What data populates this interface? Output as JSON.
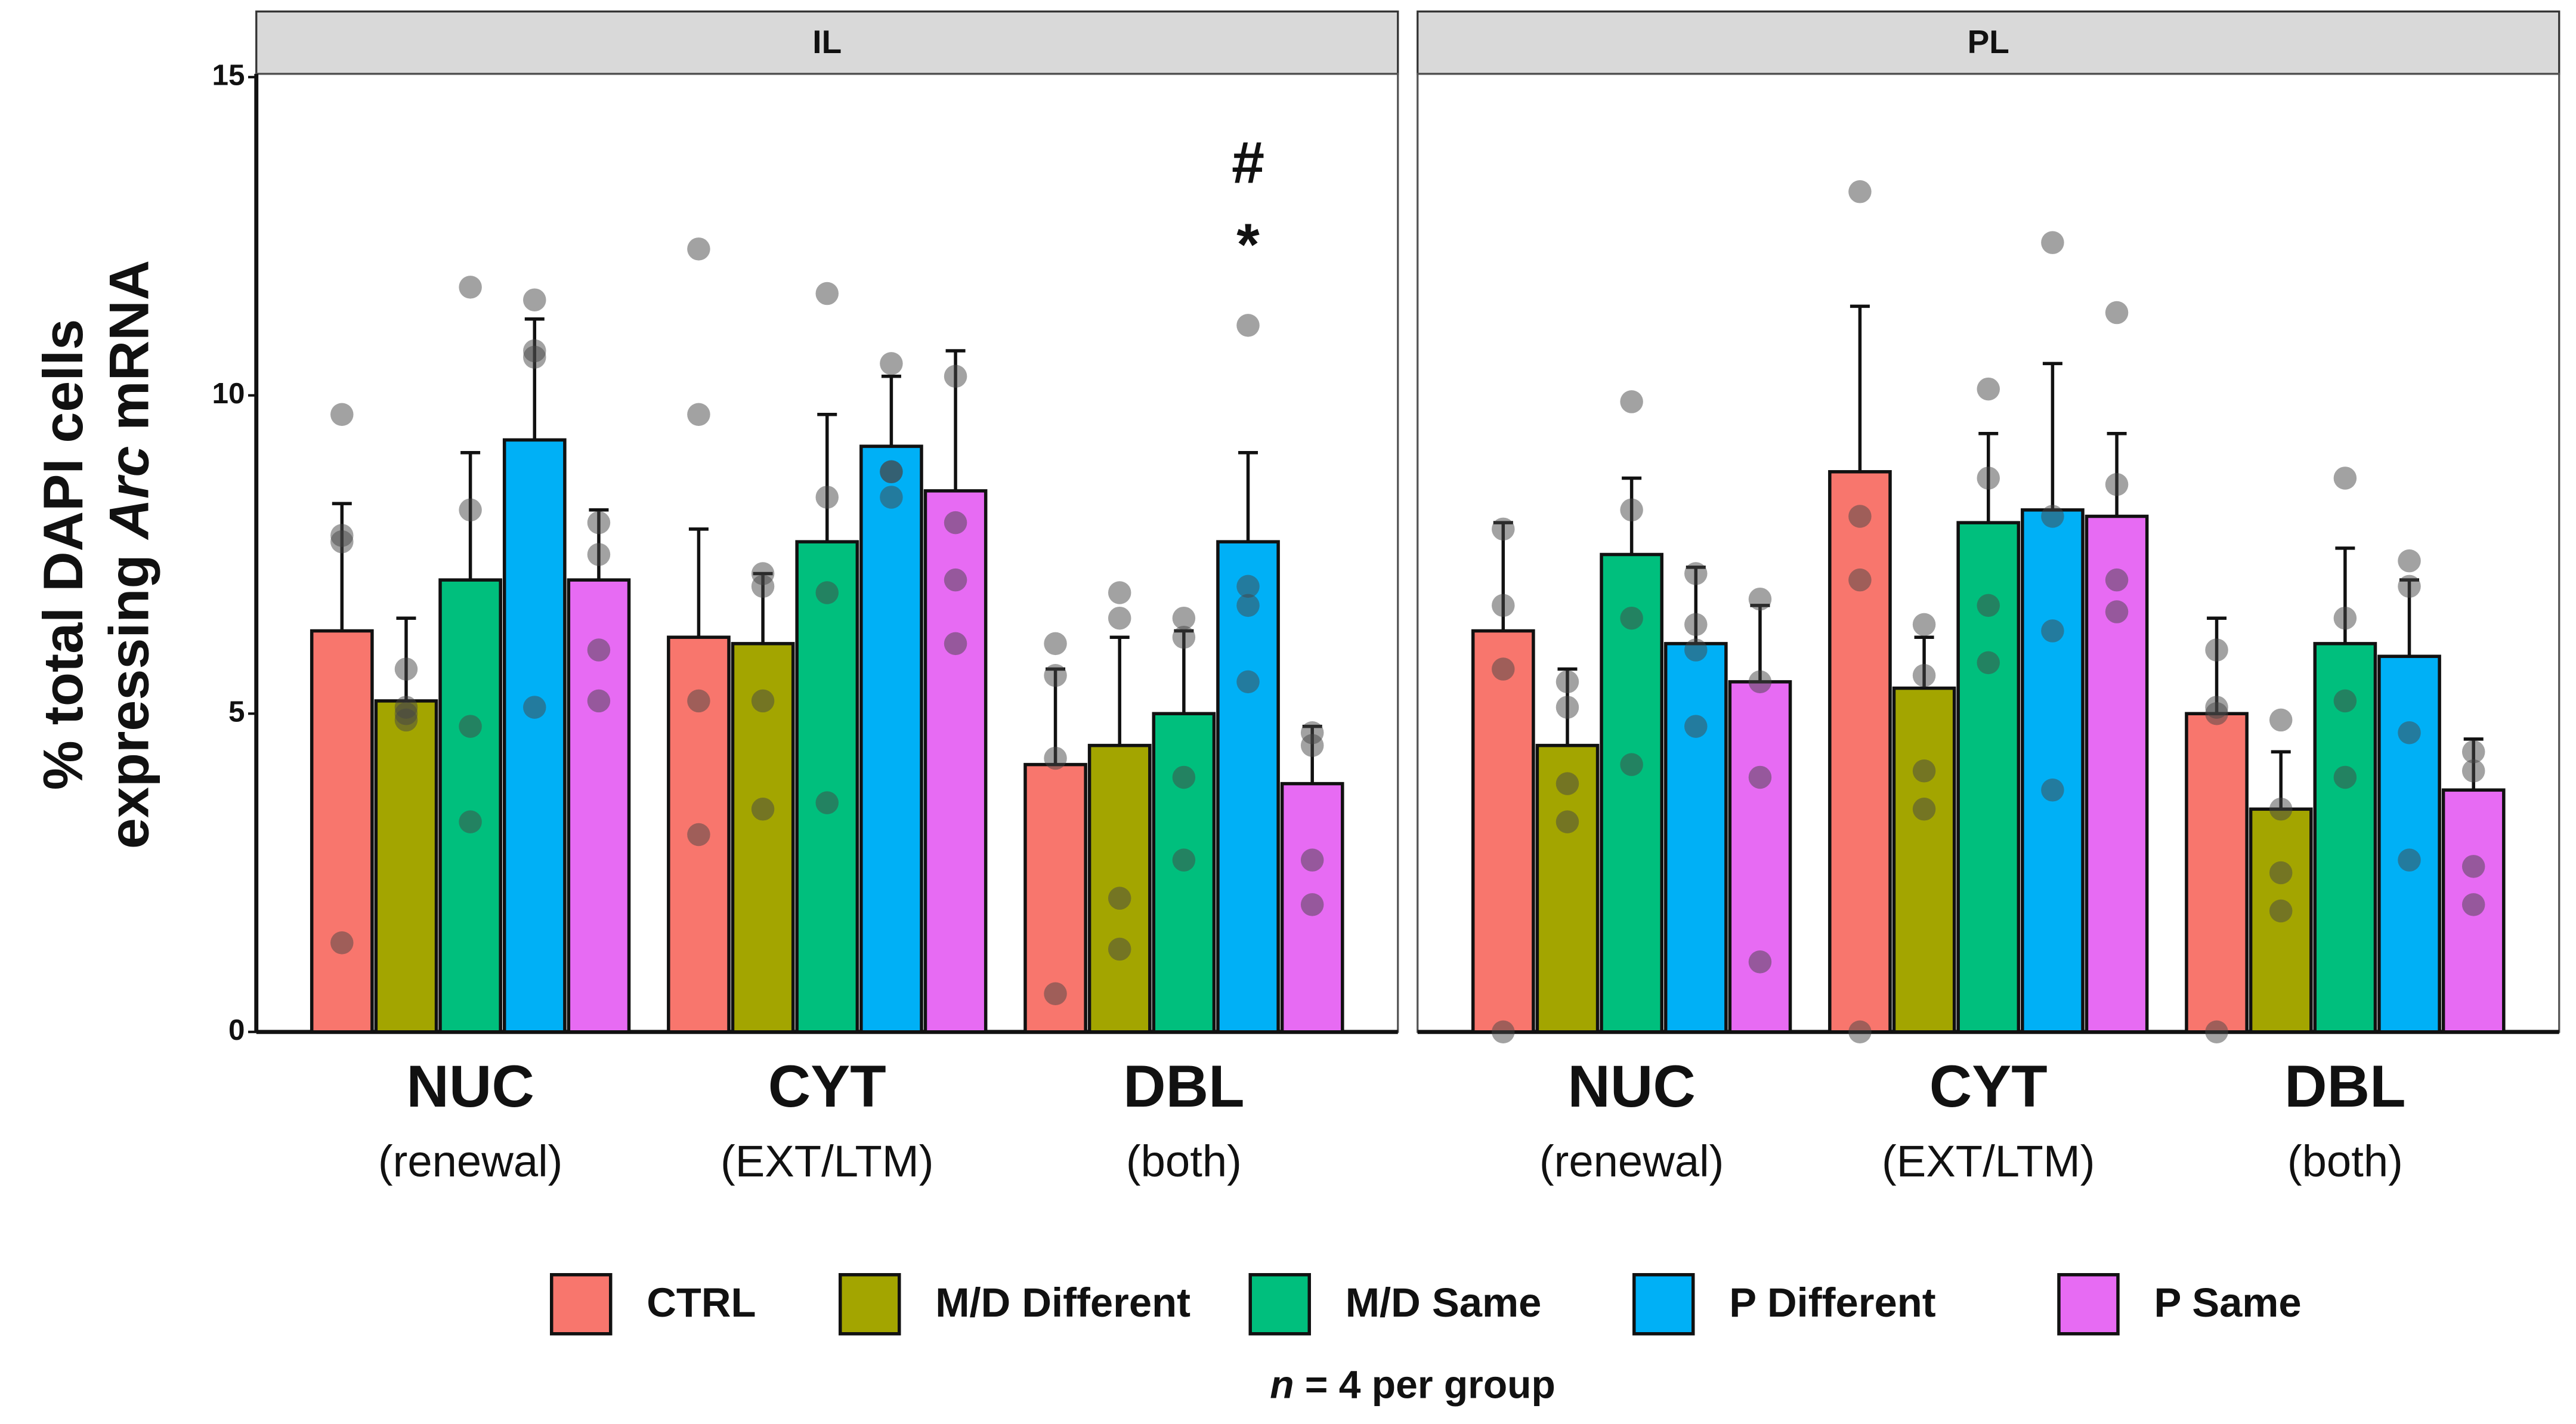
{
  "chart_data": [
    {
      "type": "bar",
      "title": "IL",
      "ylabel": {
        "line1": "% total DAPI cells",
        "line2": [
          "expressing ",
          "Arc",
          " mRNA"
        ]
      },
      "categories": [
        "NUC",
        "CYT",
        "DBL"
      ],
      "category_subtitles": [
        "(renewal)",
        "(EXT/LTM)",
        "(both)"
      ],
      "ylim": [
        0,
        15
      ],
      "yticks": [
        0,
        5,
        10,
        15
      ],
      "annotations": [
        "#",
        "*"
      ],
      "note": {
        "var": "n",
        "text": " = 4 per group"
      },
      "series": [
        {
          "name": "CTRL",
          "color": "#F8766D",
          "values": [
            6.3,
            6.2,
            4.2
          ],
          "errors": [
            2.0,
            1.7,
            1.5
          ],
          "points": [
            [
              9.7,
              7.8,
              7.7,
              1.4
            ],
            [
              12.3,
              9.7,
              5.2,
              3.1
            ],
            [
              6.1,
              5.6,
              4.3,
              0.6
            ]
          ]
        },
        {
          "name": "M/D Different",
          "color": "#A3A500",
          "values": [
            5.2,
            6.1,
            4.5
          ],
          "errors": [
            1.3,
            1.1,
            1.7
          ],
          "points": [
            [
              5.7,
              5.1,
              4.9,
              5.0
            ],
            [
              7.2,
              7.0,
              5.2,
              3.5
            ],
            [
              6.9,
              6.5,
              2.1,
              1.3
            ]
          ]
        },
        {
          "name": "M/D Same",
          "color": "#00BF7D",
          "values": [
            7.1,
            7.7,
            5.0
          ],
          "errors": [
            2.0,
            2.0,
            1.3
          ],
          "points": [
            [
              11.7,
              8.2,
              4.8,
              3.3
            ],
            [
              11.6,
              8.4,
              6.9,
              3.6
            ],
            [
              6.5,
              6.2,
              4.0,
              2.7
            ]
          ]
        },
        {
          "name": "P Different",
          "color": "#00B0F6",
          "values": [
            9.3,
            9.2,
            7.7
          ],
          "errors": [
            1.9,
            1.1,
            1.4
          ],
          "points": [
            [
              11.5,
              10.7,
              10.6,
              5.1
            ],
            [
              10.5,
              8.8,
              8.8,
              8.4
            ],
            [
              11.1,
              7.0,
              6.7,
              5.5
            ]
          ]
        },
        {
          "name": "P Same",
          "color": "#E76BF3",
          "values": [
            7.1,
            8.5,
            3.9
          ],
          "errors": [
            1.1,
            2.2,
            0.9
          ],
          "points": [
            [
              8.0,
              7.5,
              6.0,
              5.2
            ],
            [
              10.3,
              8.0,
              7.1,
              6.1
            ],
            [
              4.7,
              4.5,
              2.7,
              2.0
            ]
          ]
        }
      ]
    },
    {
      "type": "bar",
      "title": "PL",
      "categories": [
        "NUC",
        "CYT",
        "DBL"
      ],
      "category_subtitles": [
        "(renewal)",
        "(EXT/LTM)",
        "(both)"
      ],
      "ylim": [
        0,
        15
      ],
      "series": [
        {
          "color": "#F8766D",
          "values": [
            6.3,
            8.8,
            5.0
          ],
          "errors": [
            1.7,
            2.6,
            1.5
          ],
          "points": [
            [
              7.9,
              6.7,
              5.7,
              0.0
            ],
            [
              13.2,
              8.1,
              7.1,
              0.0
            ],
            [
              6.0,
              5.1,
              5.0,
              0.0
            ]
          ]
        },
        {
          "color": "#A3A500",
          "values": [
            4.5,
            5.4,
            3.5
          ],
          "errors": [
            1.2,
            0.8,
            0.9
          ],
          "points": [
            [
              5.5,
              5.1,
              3.9,
              3.3
            ],
            [
              6.4,
              5.6,
              4.1,
              3.5
            ],
            [
              4.9,
              3.5,
              2.5,
              1.9
            ]
          ]
        },
        {
          "color": "#00BF7D",
          "values": [
            7.5,
            8.0,
            6.1
          ],
          "errors": [
            1.2,
            1.4,
            1.5
          ],
          "points": [
            [
              9.9,
              8.2,
              6.5,
              4.2
            ],
            [
              10.1,
              8.7,
              6.7,
              5.8
            ],
            [
              8.7,
              6.5,
              5.2,
              4.0
            ]
          ]
        },
        {
          "color": "#00B0F6",
          "values": [
            6.1,
            8.2,
            5.9
          ],
          "errors": [
            1.2,
            2.3,
            1.2
          ],
          "points": [
            [
              7.2,
              6.4,
              6.0,
              4.8
            ],
            [
              12.4,
              8.1,
              6.3,
              3.8
            ],
            [
              7.4,
              7.0,
              4.7,
              2.7
            ]
          ]
        },
        {
          "color": "#E76BF3",
          "values": [
            5.5,
            8.1,
            3.8
          ],
          "errors": [
            1.2,
            1.3,
            0.8
          ],
          "points": [
            [
              6.8,
              5.5,
              4.0,
              1.1
            ],
            [
              11.3,
              8.6,
              7.1,
              6.6
            ],
            [
              4.4,
              4.1,
              2.6,
              2.0
            ]
          ]
        }
      ]
    }
  ]
}
